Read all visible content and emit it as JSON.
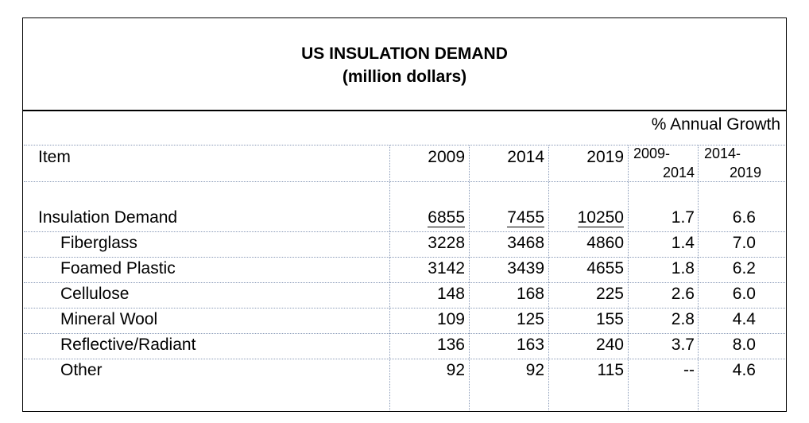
{
  "title": "US INSULATION DEMAND",
  "subtitle": "(million dollars)",
  "growth_header": "% Annual Growth",
  "columns": {
    "item": "Item",
    "y2009": "2009",
    "y2014": "2014",
    "y2019": "2019",
    "g1_top": "2009-",
    "g1_bottom": "2014",
    "g2_top": "2014-",
    "g2_bottom": "2019"
  },
  "rows": [
    {
      "label": "Insulation Demand",
      "v2009": "6855",
      "v2014": "7455",
      "v2019": "10250",
      "g1": "1.7",
      "g2": "6.6"
    },
    {
      "label": "Fiberglass",
      "v2009": "3228",
      "v2014": "3468",
      "v2019": "4860",
      "g1": "1.4",
      "g2": "7.0"
    },
    {
      "label": "Foamed Plastic",
      "v2009": "3142",
      "v2014": "3439",
      "v2019": "4655",
      "g1": "1.8",
      "g2": "6.2"
    },
    {
      "label": "Cellulose",
      "v2009": "148",
      "v2014": "168",
      "v2019": "225",
      "g1": "2.6",
      "g2": "6.0"
    },
    {
      "label": "Mineral Wool",
      "v2009": "109",
      "v2014": "125",
      "v2019": "155",
      "g1": "2.8",
      "g2": "4.4"
    },
    {
      "label": "Reflective/Radiant",
      "v2009": "136",
      "v2014": "163",
      "v2019": "240",
      "g1": "3.7",
      "g2": "8.0"
    },
    {
      "label": "Other",
      "v2009": "92",
      "v2014": "92",
      "v2019": "115",
      "g1": "--",
      "g2": "4.6"
    }
  ]
}
